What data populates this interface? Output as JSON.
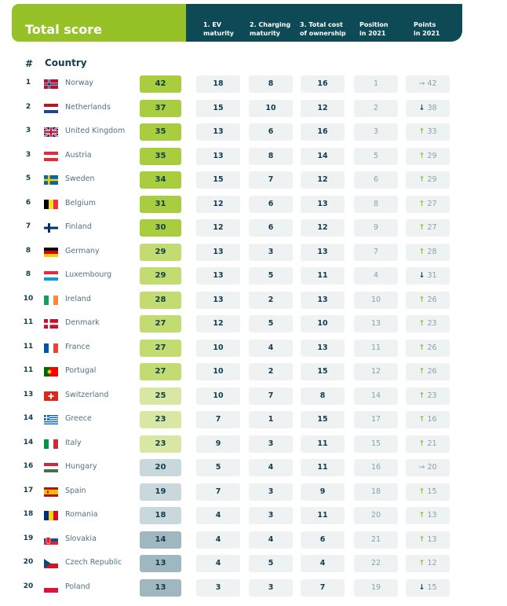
{
  "header": {
    "title": "Total score",
    "col1": "1. EV\nmaturity",
    "col2": "2. Charging\nmaturity",
    "col3": "3. Total cost\nof ownership",
    "col4": "Position\nin 2021",
    "col5": "Points\nin 2021"
  },
  "subheader": {
    "rank": "#",
    "country": "Country"
  },
  "colors": {
    "header_green": "#97c227",
    "header_dark": "#0d4a56",
    "up_arrow": "#97c227",
    "down_arrow": "#0d4a56"
  },
  "chart_data": {
    "type": "table",
    "columns": [
      "#",
      "Country",
      "Total score",
      "1. EV maturity",
      "2. Charging maturity",
      "3. Total cost of ownership",
      "Position in 2021",
      "Points in 2021"
    ],
    "rows": [
      {
        "rank": "1",
        "country": "Norway",
        "flag": "norway",
        "total": "42",
        "ev": "18",
        "charging": "8",
        "tco": "16",
        "pos2021": "1",
        "trend": "same",
        "arrow": "→",
        "pts2021": "42"
      },
      {
        "rank": "2",
        "country": "Netherlands",
        "flag": "netherlands",
        "total": "37",
        "ev": "15",
        "charging": "10",
        "tco": "12",
        "pos2021": "2",
        "trend": "down",
        "arrow": "↓",
        "pts2021": "38"
      },
      {
        "rank": "3",
        "country": "United Kingdom",
        "flag": "uk",
        "total": "35",
        "ev": "13",
        "charging": "6",
        "tco": "16",
        "pos2021": "3",
        "trend": "up",
        "arrow": "↑",
        "pts2021": "33"
      },
      {
        "rank": "3",
        "country": "Austria",
        "flag": "austria",
        "total": "35",
        "ev": "13",
        "charging": "8",
        "tco": "14",
        "pos2021": "5",
        "trend": "up",
        "arrow": "↑",
        "pts2021": "29"
      },
      {
        "rank": "5",
        "country": "Sweden",
        "flag": "sweden",
        "total": "34",
        "ev": "15",
        "charging": "7",
        "tco": "12",
        "pos2021": "6",
        "trend": "up",
        "arrow": "↑",
        "pts2021": "29"
      },
      {
        "rank": "6",
        "country": "Belgium",
        "flag": "belgium",
        "total": "31",
        "ev": "12",
        "charging": "6",
        "tco": "13",
        "pos2021": "8",
        "trend": "up",
        "arrow": "↑",
        "pts2021": "27"
      },
      {
        "rank": "7",
        "country": "Finland",
        "flag": "finland",
        "total": "30",
        "ev": "12",
        "charging": "6",
        "tco": "12",
        "pos2021": "9",
        "trend": "up",
        "arrow": "↑",
        "pts2021": "27"
      },
      {
        "rank": "8",
        "country": "Germany",
        "flag": "germany",
        "total": "29",
        "ev": "13",
        "charging": "3",
        "tco": "13",
        "pos2021": "7",
        "trend": "up",
        "arrow": "↑",
        "pts2021": "28"
      },
      {
        "rank": "8",
        "country": "Luxembourg",
        "flag": "luxembourg",
        "total": "29",
        "ev": "13",
        "charging": "5",
        "tco": "11",
        "pos2021": "4",
        "trend": "down",
        "arrow": "↓",
        "pts2021": "31"
      },
      {
        "rank": "10",
        "country": "Ireland",
        "flag": "ireland",
        "total": "28",
        "ev": "13",
        "charging": "2",
        "tco": "13",
        "pos2021": "10",
        "trend": "up",
        "arrow": "↑",
        "pts2021": "26"
      },
      {
        "rank": "11",
        "country": "Denmark",
        "flag": "denmark",
        "total": "27",
        "ev": "12",
        "charging": "5",
        "tco": "10",
        "pos2021": "13",
        "trend": "up",
        "arrow": "↑",
        "pts2021": "23"
      },
      {
        "rank": "11",
        "country": "France",
        "flag": "france",
        "total": "27",
        "ev": "10",
        "charging": "4",
        "tco": "13",
        "pos2021": "11",
        "trend": "up",
        "arrow": "↑",
        "pts2021": "26"
      },
      {
        "rank": "11",
        "country": "Portugal",
        "flag": "portugal",
        "total": "27",
        "ev": "10",
        "charging": "2",
        "tco": "15",
        "pos2021": "12",
        "trend": "up",
        "arrow": "↑",
        "pts2021": "26"
      },
      {
        "rank": "13",
        "country": "Switzerland",
        "flag": "switzerland",
        "total": "25",
        "ev": "10",
        "charging": "7",
        "tco": "8",
        "pos2021": "14",
        "trend": "up",
        "arrow": "↑",
        "pts2021": "23"
      },
      {
        "rank": "14",
        "country": "Greece",
        "flag": "greece",
        "total": "23",
        "ev": "7",
        "charging": "1",
        "tco": "15",
        "pos2021": "17",
        "trend": "up",
        "arrow": "↑",
        "pts2021": "16"
      },
      {
        "rank": "14",
        "country": "Italy",
        "flag": "italy",
        "total": "23",
        "ev": "9",
        "charging": "3",
        "tco": "11",
        "pos2021": "15",
        "trend": "up",
        "arrow": "↑",
        "pts2021": "21"
      },
      {
        "rank": "16",
        "country": "Hungary",
        "flag": "hungary",
        "total": "20",
        "ev": "5",
        "charging": "4",
        "tco": "11",
        "pos2021": "16",
        "trend": "same",
        "arrow": "→",
        "pts2021": "20"
      },
      {
        "rank": "17",
        "country": "Spain",
        "flag": "spain",
        "total": "19",
        "ev": "7",
        "charging": "3",
        "tco": "9",
        "pos2021": "18",
        "trend": "up",
        "arrow": "↑",
        "pts2021": "15"
      },
      {
        "rank": "18",
        "country": "Romania",
        "flag": "romania",
        "total": "18",
        "ev": "4",
        "charging": "3",
        "tco": "11",
        "pos2021": "20",
        "trend": "up",
        "arrow": "↑",
        "pts2021": "13"
      },
      {
        "rank": "19",
        "country": "Slovakia",
        "flag": "slovakia",
        "total": "14",
        "ev": "4",
        "charging": "4",
        "tco": "6",
        "pos2021": "21",
        "trend": "up",
        "arrow": "↑",
        "pts2021": "13"
      },
      {
        "rank": "20",
        "country": "Czech Republic",
        "flag": "czech",
        "total": "13",
        "ev": "4",
        "charging": "5",
        "tco": "4",
        "pos2021": "22",
        "trend": "up",
        "arrow": "↑",
        "pts2021": "12"
      },
      {
        "rank": "20",
        "country": "Poland",
        "flag": "poland",
        "total": "13",
        "ev": "3",
        "charging": "3",
        "tco": "7",
        "pos2021": "19",
        "trend": "down",
        "arrow": "↓",
        "pts2021": "15"
      }
    ]
  }
}
